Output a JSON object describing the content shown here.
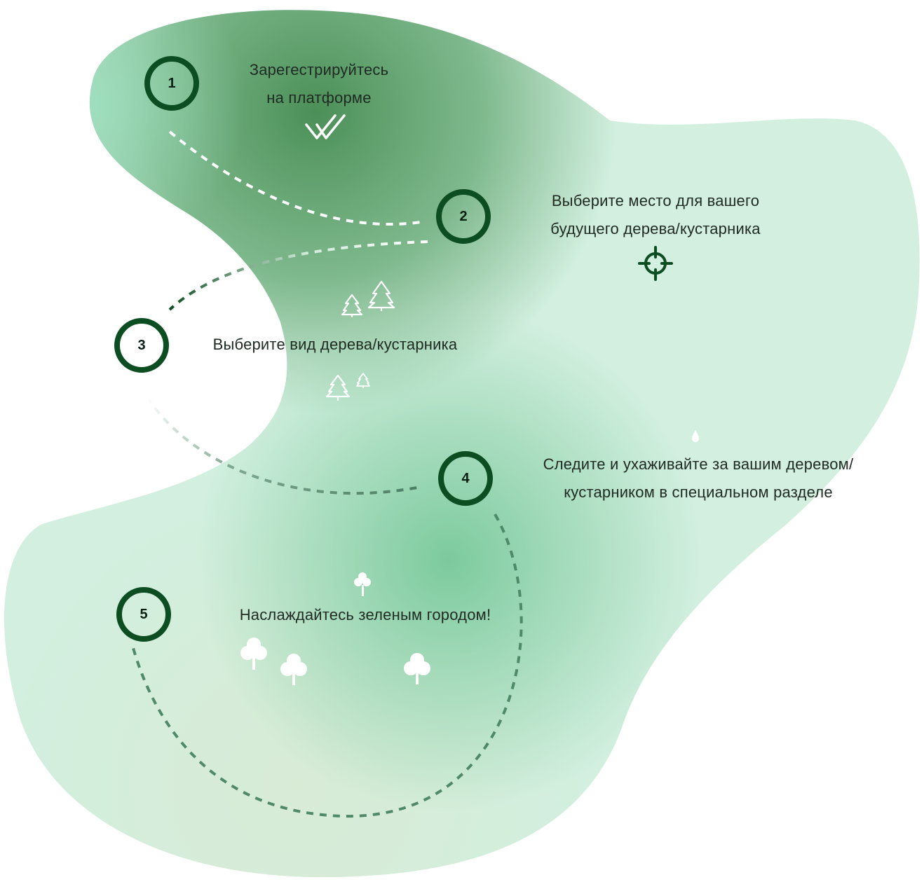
{
  "steps": [
    {
      "number": "1",
      "text_lines": [
        "Зарегестрируйтесь",
        "на платформе"
      ],
      "icon": "double-check-icon"
    },
    {
      "number": "2",
      "text_lines": [
        "Выберите место для вашего",
        "будущего дерева/кустарника"
      ],
      "icon": "crosshair-target-icon"
    },
    {
      "number": "3",
      "text_lines": [
        "Выберите вид дерева/кустарника"
      ],
      "icon": "fir-tree-icon"
    },
    {
      "number": "4",
      "text_lines": [
        "Следите и ухаживайте за вашим деревом/",
        "кустарником в специальном разделе"
      ],
      "icon": "water-drop-icon"
    },
    {
      "number": "5",
      "text_lines": [
        "Наслаждайтесь зеленым городом!"
      ],
      "icon": "round-tree-icon"
    }
  ],
  "colors": {
    "ring": "#0d4d22",
    "blob_dark": "#4f955f",
    "blob_mid": "#7fcba0",
    "blob_light": "#d6f1e1",
    "path_dash": "#4f8a68",
    "white": "#ffffff"
  }
}
